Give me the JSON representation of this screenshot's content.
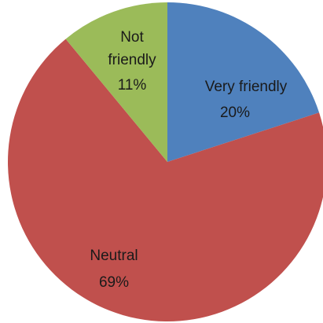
{
  "chart_data": {
    "type": "pie",
    "categories": [
      "Very friendly",
      "Neutral",
      "Not friendly"
    ],
    "values": [
      20,
      69,
      11
    ],
    "value_labels": [
      "20%",
      "69%",
      "11%"
    ],
    "colors": [
      "#4f81bd",
      "#c0504d",
      "#9bbb59"
    ],
    "start_angle_deg": 0,
    "direction": "clockwise",
    "legend": "none"
  }
}
